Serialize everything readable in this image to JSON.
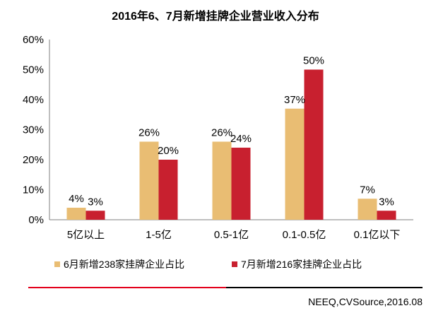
{
  "chart_data": {
    "type": "bar",
    "title": "2016年6、7月新增挂牌企业营业收入分布",
    "categories": [
      "5亿以上",
      "1-5亿",
      "0.5-1亿",
      "0.1-0.5亿",
      "0.1亿以下"
    ],
    "series": [
      {
        "name": "6月新增238家挂牌企业占比",
        "values": [
          4,
          26,
          26,
          37,
          7
        ],
        "labels": [
          "4%",
          "26%",
          "26%",
          "37%",
          "7%"
        ],
        "color": "#E9BD73"
      },
      {
        "name": "7月新增216家挂牌企业占比",
        "values": [
          3,
          20,
          24,
          50,
          3
        ],
        "labels": [
          "3%",
          "20%",
          "24%",
          "50%",
          "3%"
        ],
        "color": "#C8202F"
      }
    ],
    "yticks": [
      "0%",
      "10%",
      "20%",
      "30%",
      "40%",
      "50%",
      "60%"
    ],
    "ylim": [
      0,
      60
    ],
    "xlabel": "",
    "ylabel": "",
    "legend_position": "bottom"
  },
  "footer": {
    "source": "NEEQ,CVSource,2016.08",
    "rule_left_color": "#E3001B",
    "rule_right_color": "#000000"
  }
}
